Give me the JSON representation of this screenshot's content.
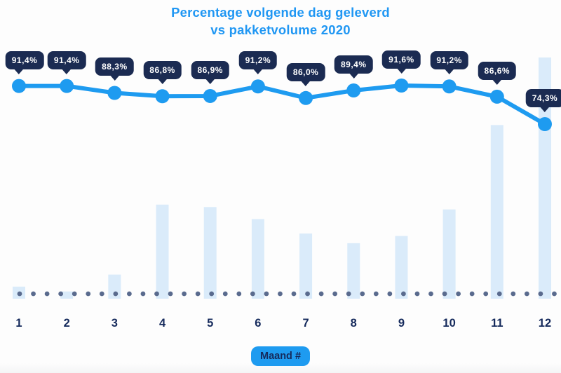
{
  "title": {
    "line1": "Percentage volgende dag geleverd",
    "line2": "vs pakketvolume 2020"
  },
  "x_axis": {
    "labels": [
      "1",
      "2",
      "3",
      "4",
      "5",
      "6",
      "7",
      "8",
      "9",
      "10",
      "11",
      "12"
    ],
    "badge": "Maand #"
  },
  "colors": {
    "accent": "#1E9BF0",
    "title_blue": "#2097F3",
    "tooltip_navy": "#1B2B52",
    "axis_navy": "#152A5C",
    "bar_light_blue": "#DAEBFA",
    "dotted_baseline": "#5A6B8E",
    "background": "#FDFDFD",
    "tooltip_text": "#FFFFFF"
  },
  "chart_data": {
    "type": "line+bar",
    "title": "Percentage volgende dag geleverd vs pakketvolume 2020",
    "categories": [
      1,
      2,
      3,
      4,
      5,
      6,
      7,
      8,
      9,
      10,
      11,
      12
    ],
    "xlabel": "Maand #",
    "legend_position": "none",
    "y_axis_visible": false,
    "grid": "dotted horizontal baseline",
    "series": [
      {
        "name": "Percentage volgende dag geleverd",
        "type": "line",
        "unit": "%",
        "values": [
          91.4,
          91.4,
          88.3,
          86.8,
          86.9,
          91.2,
          86.0,
          89.4,
          91.6,
          91.2,
          86.6,
          74.3
        ],
        "point_labels": [
          "91,4%",
          "91,4%",
          "88,3%",
          "86,8%",
          "86,9%",
          "91,2%",
          "86,0%",
          "89,4%",
          "91,6%",
          "91,2%",
          "86,6%",
          "74,3%"
        ],
        "value_range_shown": [
          74.3,
          91.6
        ]
      },
      {
        "name": "Pakketvolume 2020",
        "type": "bar",
        "unit": "relative volume, % of max month (estimated from bar heights)",
        "values": [
          5,
          3,
          10,
          39,
          38,
          33,
          27,
          23,
          26,
          37,
          72,
          100
        ]
      }
    ]
  }
}
